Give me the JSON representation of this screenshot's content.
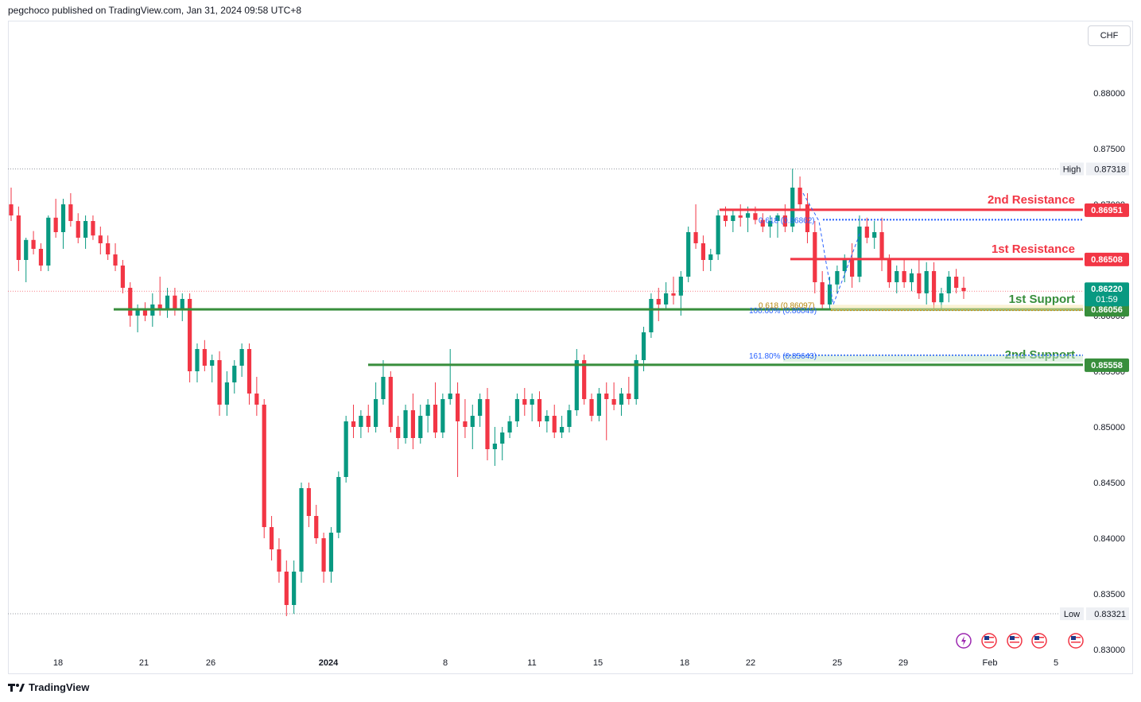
{
  "header": {
    "published_text": "pegchoco published on TradingView.com, Jan 31, 2024 09:58 UTC+8"
  },
  "currency_label": "CHF",
  "footer": {
    "brand": "TradingView"
  },
  "bottom_icons": [
    "lightning-icon",
    "us-flag-icon",
    "us-flag-icon",
    "us-flag-icon",
    "us-flag-icon"
  ],
  "colors": {
    "up": "#089981",
    "down": "#f23645",
    "support": "#388e3c",
    "resistance": "#f23645",
    "fib": "#2962ff",
    "fib_gold": "#b8860b"
  },
  "chart_data": {
    "type": "candlestick",
    "price_axis_ticks": [
      "0.88000",
      "0.87500",
      "0.87000",
      "0.86500",
      "0.86000",
      "0.85500",
      "0.85000",
      "0.84500",
      "0.84000",
      "0.83500",
      "0.83000"
    ],
    "time_axis_ticks": [
      "18",
      "21",
      "26",
      "2024",
      "8",
      "11",
      "15",
      "18",
      "22",
      "25",
      "29",
      "Feb",
      "5"
    ],
    "high": {
      "label": "High",
      "value": "0.87318"
    },
    "low": {
      "label": "Low",
      "value": "0.83321"
    },
    "current_price": {
      "value": "0.86220",
      "countdown": "01:59"
    },
    "levels": [
      {
        "name": "2nd Resistance",
        "value": "0.86951",
        "kind": "resistance"
      },
      {
        "name": "1st Resistance",
        "value": "0.86508",
        "kind": "resistance"
      },
      {
        "name": "1st Support",
        "value": "0.86056",
        "kind": "support"
      },
      {
        "name": "2nd Support",
        "value": "0.85558",
        "kind": "support"
      }
    ],
    "fib_labels": [
      {
        "text": "0.618 (0.86862)",
        "value": 0.86862
      },
      {
        "text": "100.00% (0.86049)",
        "value": 0.86049
      },
      {
        "text": "0.618 (0.86097)",
        "value": 0.86097
      },
      {
        "text": "161.80% (0.85643)",
        "value": 0.85643
      }
    ],
    "y_range": [
      0.83,
      0.882
    ],
    "candles": [
      [
        0.87,
        0.8715,
        0.8685,
        0.869
      ],
      [
        0.869,
        0.8698,
        0.864,
        0.865
      ],
      [
        0.865,
        0.867,
        0.863,
        0.8668
      ],
      [
        0.8668,
        0.8676,
        0.8655,
        0.866
      ],
      [
        0.866,
        0.8665,
        0.864,
        0.8645
      ],
      [
        0.8645,
        0.869,
        0.864,
        0.8688
      ],
      [
        0.8688,
        0.8705,
        0.867,
        0.8675
      ],
      [
        0.8675,
        0.8705,
        0.866,
        0.87
      ],
      [
        0.87,
        0.871,
        0.868,
        0.8685
      ],
      [
        0.8685,
        0.8692,
        0.8665,
        0.867
      ],
      [
        0.867,
        0.869,
        0.866,
        0.8685
      ],
      [
        0.8685,
        0.869,
        0.8668,
        0.8672
      ],
      [
        0.8672,
        0.868,
        0.8655,
        0.8665
      ],
      [
        0.8665,
        0.8672,
        0.865,
        0.8655
      ],
      [
        0.8655,
        0.8665,
        0.864,
        0.8645
      ],
      [
        0.8645,
        0.865,
        0.862,
        0.8625
      ],
      [
        0.8625,
        0.863,
        0.859,
        0.86
      ],
      [
        0.86,
        0.861,
        0.8585,
        0.8605
      ],
      [
        0.8605,
        0.8612,
        0.8595,
        0.86
      ],
      [
        0.86,
        0.862,
        0.859,
        0.861
      ],
      [
        0.861,
        0.8635,
        0.86,
        0.8605
      ],
      [
        0.8605,
        0.8625,
        0.8598,
        0.8618
      ],
      [
        0.8618,
        0.8625,
        0.86,
        0.8605
      ],
      [
        0.8605,
        0.862,
        0.8595,
        0.8615
      ],
      [
        0.8615,
        0.862,
        0.854,
        0.855
      ],
      [
        0.855,
        0.8575,
        0.854,
        0.857
      ],
      [
        0.857,
        0.8578,
        0.855,
        0.8555
      ],
      [
        0.8555,
        0.8565,
        0.854,
        0.856
      ],
      [
        0.856,
        0.8568,
        0.851,
        0.852
      ],
      [
        0.852,
        0.855,
        0.851,
        0.854
      ],
      [
        0.854,
        0.856,
        0.853,
        0.8555
      ],
      [
        0.8555,
        0.8575,
        0.8545,
        0.857
      ],
      [
        0.857,
        0.8575,
        0.852,
        0.853
      ],
      [
        0.853,
        0.8545,
        0.851,
        0.852
      ],
      [
        0.852,
        0.8525,
        0.84,
        0.841
      ],
      [
        0.841,
        0.842,
        0.838,
        0.839
      ],
      [
        0.839,
        0.84,
        0.836,
        0.837
      ],
      [
        0.837,
        0.838,
        0.833,
        0.834
      ],
      [
        0.834,
        0.838,
        0.8332,
        0.837
      ],
      [
        0.837,
        0.845,
        0.836,
        0.8445
      ],
      [
        0.8445,
        0.845,
        0.841,
        0.842
      ],
      [
        0.842,
        0.843,
        0.8395,
        0.84
      ],
      [
        0.84,
        0.8405,
        0.836,
        0.837
      ],
      [
        0.837,
        0.841,
        0.836,
        0.8405
      ],
      [
        0.8405,
        0.846,
        0.84,
        0.8455
      ],
      [
        0.8455,
        0.851,
        0.845,
        0.8505
      ],
      [
        0.8505,
        0.852,
        0.849,
        0.85
      ],
      [
        0.85,
        0.8515,
        0.849,
        0.851
      ],
      [
        0.851,
        0.852,
        0.8495,
        0.85
      ],
      [
        0.85,
        0.854,
        0.8495,
        0.8525
      ],
      [
        0.8525,
        0.856,
        0.852,
        0.8545
      ],
      [
        0.8545,
        0.855,
        0.8495,
        0.85
      ],
      [
        0.85,
        0.851,
        0.848,
        0.849
      ],
      [
        0.849,
        0.852,
        0.8485,
        0.8515
      ],
      [
        0.8515,
        0.853,
        0.848,
        0.849
      ],
      [
        0.849,
        0.852,
        0.8485,
        0.851
      ],
      [
        0.851,
        0.8525,
        0.8495,
        0.852
      ],
      [
        0.852,
        0.854,
        0.849,
        0.8495
      ],
      [
        0.8495,
        0.853,
        0.849,
        0.8525
      ],
      [
        0.8525,
        0.857,
        0.852,
        0.853
      ],
      [
        0.853,
        0.854,
        0.8455,
        0.8505
      ],
      [
        0.8505,
        0.8525,
        0.849,
        0.85
      ],
      [
        0.85,
        0.852,
        0.848,
        0.851
      ],
      [
        0.851,
        0.853,
        0.85,
        0.8525
      ],
      [
        0.8525,
        0.8535,
        0.847,
        0.848
      ],
      [
        0.848,
        0.85,
        0.8465,
        0.8485
      ],
      [
        0.8485,
        0.85,
        0.847,
        0.8495
      ],
      [
        0.8495,
        0.851,
        0.849,
        0.8505
      ],
      [
        0.8505,
        0.853,
        0.85,
        0.8525
      ],
      [
        0.8525,
        0.8535,
        0.851,
        0.852
      ],
      [
        0.852,
        0.853,
        0.8505,
        0.8525
      ],
      [
        0.8525,
        0.8532,
        0.85,
        0.8505
      ],
      [
        0.8505,
        0.8515,
        0.8495,
        0.851
      ],
      [
        0.851,
        0.852,
        0.849,
        0.8495
      ],
      [
        0.8495,
        0.851,
        0.849,
        0.85
      ],
      [
        0.85,
        0.852,
        0.8495,
        0.8515
      ],
      [
        0.8515,
        0.857,
        0.851,
        0.856
      ],
      [
        0.856,
        0.8565,
        0.852,
        0.8525
      ],
      [
        0.8525,
        0.853,
        0.8505,
        0.851
      ],
      [
        0.851,
        0.8535,
        0.8505,
        0.853
      ],
      [
        0.853,
        0.854,
        0.8488,
        0.8525
      ],
      [
        0.8525,
        0.854,
        0.8515,
        0.852
      ],
      [
        0.852,
        0.8535,
        0.851,
        0.853
      ],
      [
        0.853,
        0.8545,
        0.852,
        0.8525
      ],
      [
        0.8525,
        0.8565,
        0.852,
        0.856
      ],
      [
        0.856,
        0.859,
        0.855,
        0.8585
      ],
      [
        0.8585,
        0.862,
        0.858,
        0.8615
      ],
      [
        0.8615,
        0.8625,
        0.8595,
        0.861
      ],
      [
        0.861,
        0.863,
        0.8605,
        0.862
      ],
      [
        0.862,
        0.8635,
        0.861,
        0.8618
      ],
      [
        0.8618,
        0.864,
        0.86,
        0.8635
      ],
      [
        0.8635,
        0.868,
        0.863,
        0.8675
      ],
      [
        0.8675,
        0.87,
        0.866,
        0.8665
      ],
      [
        0.8665,
        0.8672,
        0.864,
        0.865
      ],
      [
        0.865,
        0.866,
        0.864,
        0.8655
      ],
      [
        0.8655,
        0.8695,
        0.865,
        0.869
      ],
      [
        0.869,
        0.8698,
        0.868,
        0.8685
      ],
      [
        0.8685,
        0.8695,
        0.8675,
        0.869
      ],
      [
        0.869,
        0.87,
        0.868,
        0.8688
      ],
      [
        0.8688,
        0.8698,
        0.8675,
        0.8692
      ],
      [
        0.8692,
        0.8698,
        0.8682,
        0.8686
      ],
      [
        0.8686,
        0.8692,
        0.8675,
        0.868
      ],
      [
        0.868,
        0.869,
        0.867,
        0.8685
      ],
      [
        0.8685,
        0.8692,
        0.867,
        0.869
      ],
      [
        0.869,
        0.87,
        0.8675,
        0.868
      ],
      [
        0.868,
        0.8732,
        0.8675,
        0.8715
      ],
      [
        0.8715,
        0.8725,
        0.8695,
        0.87
      ],
      [
        0.87,
        0.871,
        0.8665,
        0.8675
      ],
      [
        0.8675,
        0.8685,
        0.862,
        0.863
      ],
      [
        0.863,
        0.864,
        0.8605,
        0.861
      ],
      [
        0.861,
        0.8635,
        0.8605,
        0.8628
      ],
      [
        0.8628,
        0.8645,
        0.862,
        0.864
      ],
      [
        0.864,
        0.8655,
        0.863,
        0.865
      ],
      [
        0.865,
        0.8665,
        0.8625,
        0.8635
      ],
      [
        0.8635,
        0.869,
        0.863,
        0.868
      ],
      [
        0.868,
        0.8688,
        0.8665,
        0.867
      ],
      [
        0.867,
        0.8685,
        0.866,
        0.8675
      ],
      [
        0.8675,
        0.8688,
        0.864,
        0.865
      ],
      [
        0.865,
        0.8655,
        0.8625,
        0.863
      ],
      [
        0.863,
        0.8645,
        0.862,
        0.864
      ],
      [
        0.864,
        0.865,
        0.8625,
        0.863
      ],
      [
        0.863,
        0.8642,
        0.8622,
        0.8638
      ],
      [
        0.8638,
        0.865,
        0.8615,
        0.862
      ],
      [
        0.862,
        0.8648,
        0.861,
        0.864
      ],
      [
        0.864,
        0.8648,
        0.8605,
        0.8612
      ],
      [
        0.8612,
        0.8625,
        0.8605,
        0.862
      ],
      [
        0.862,
        0.864,
        0.8612,
        0.8635
      ],
      [
        0.8635,
        0.8642,
        0.862,
        0.8625
      ],
      [
        0.8625,
        0.8635,
        0.8615,
        0.8622
      ]
    ]
  }
}
